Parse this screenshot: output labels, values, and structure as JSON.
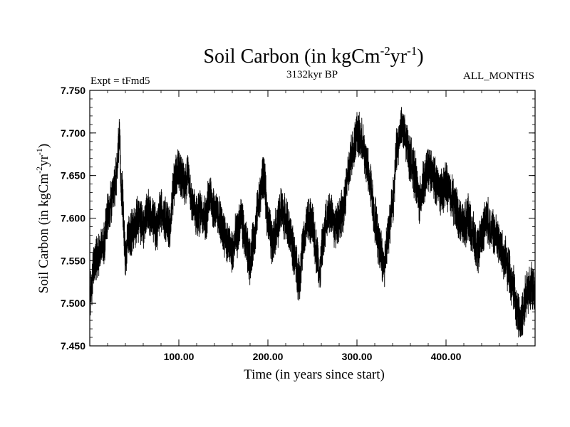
{
  "chart_data": {
    "type": "line",
    "title": {
      "main": "Soil Carbon (in kgCm",
      "sup1": "-2",
      "mid": "yr",
      "sup2": "-1",
      "end": ")"
    },
    "subtitle": "3132kyr BP",
    "left_label": "Expt = tFmd5",
    "right_label": "ALL_MONTHS",
    "xlabel": "Time (in years since start)",
    "ylabel": {
      "main": "Soil Carbon (in kgCm",
      "sup1": "-2",
      "mid": "yr",
      "sup2": "-1",
      "end": ")"
    },
    "xlim": [
      0,
      500
    ],
    "ylim": [
      7.45,
      7.75
    ],
    "xticks": [
      100,
      200,
      300,
      400
    ],
    "xtick_labels": [
      "100.00",
      "200.00",
      "300.00",
      "400.00"
    ],
    "yticks": [
      7.45,
      7.5,
      7.55,
      7.6,
      7.65,
      7.7,
      7.75
    ],
    "ytick_labels": [
      "7.450",
      "7.500",
      "7.550",
      "7.600",
      "7.650",
      "7.700",
      "7.750"
    ],
    "line_color": "#000000",
    "series": [
      {
        "name": "Soil Carbon",
        "x": [
          0,
          5,
          10,
          15,
          20,
          25,
          30,
          33,
          36,
          40,
          45,
          50,
          55,
          60,
          65,
          70,
          75,
          80,
          85,
          90,
          95,
          100,
          103,
          106,
          110,
          115,
          120,
          125,
          130,
          135,
          140,
          145,
          150,
          155,
          160,
          165,
          170,
          175,
          180,
          185,
          190,
          195,
          200,
          205,
          210,
          215,
          220,
          225,
          230,
          235,
          240,
          245,
          250,
          255,
          258,
          262,
          266,
          270,
          275,
          280,
          285,
          290,
          295,
          300,
          305,
          310,
          315,
          320,
          325,
          330,
          335,
          340,
          345,
          350,
          355,
          360,
          365,
          370,
          375,
          380,
          385,
          390,
          395,
          400,
          405,
          410,
          415,
          420,
          425,
          430,
          435,
          440,
          445,
          450,
          455,
          460,
          465,
          470,
          475,
          480,
          485,
          490,
          495,
          500
        ],
        "values": [
          7.51,
          7.545,
          7.56,
          7.57,
          7.6,
          7.62,
          7.65,
          7.69,
          7.63,
          7.56,
          7.58,
          7.59,
          7.6,
          7.59,
          7.61,
          7.6,
          7.59,
          7.61,
          7.6,
          7.59,
          7.64,
          7.66,
          7.65,
          7.64,
          7.65,
          7.62,
          7.6,
          7.61,
          7.6,
          7.63,
          7.61,
          7.6,
          7.585,
          7.57,
          7.56,
          7.58,
          7.6,
          7.57,
          7.55,
          7.58,
          7.62,
          7.65,
          7.6,
          7.57,
          7.59,
          7.61,
          7.6,
          7.58,
          7.555,
          7.53,
          7.57,
          7.6,
          7.59,
          7.56,
          7.535,
          7.57,
          7.6,
          7.61,
          7.59,
          7.6,
          7.61,
          7.65,
          7.68,
          7.7,
          7.69,
          7.67,
          7.64,
          7.6,
          7.57,
          7.545,
          7.58,
          7.62,
          7.68,
          7.71,
          7.69,
          7.67,
          7.65,
          7.62,
          7.64,
          7.66,
          7.65,
          7.64,
          7.63,
          7.64,
          7.63,
          7.615,
          7.6,
          7.59,
          7.6,
          7.58,
          7.56,
          7.58,
          7.6,
          7.59,
          7.58,
          7.57,
          7.555,
          7.54,
          7.52,
          7.49,
          7.48,
          7.51,
          7.52,
          7.51
        ]
      }
    ]
  }
}
